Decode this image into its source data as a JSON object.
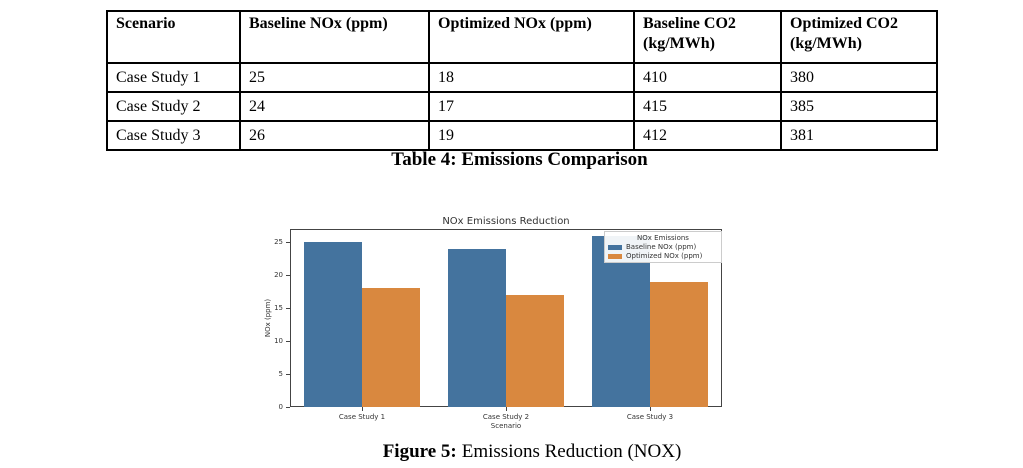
{
  "table": {
    "caption": "Table 4: Emissions Comparison",
    "columns": [
      "Scenario",
      "Baseline NOx (ppm)",
      "Optimized NOx (ppm)",
      "Baseline CO2 (kg/MWh)",
      "Optimized CO2 (kg/MWh)"
    ],
    "rows": [
      [
        "Case Study 1",
        "25",
        "18",
        "410",
        "380"
      ],
      [
        "Case Study 2",
        "24",
        "17",
        "415",
        "385"
      ],
      [
        "Case Study 3",
        "26",
        "19",
        "412",
        "381"
      ]
    ]
  },
  "figure": {
    "caption_label": "Figure 5:",
    "caption_text": "Emissions Reduction (NOX)"
  },
  "chart_data": {
    "type": "bar",
    "title": "NOx Emissions Reduction",
    "xlabel": "Scenario",
    "ylabel": "NOx (ppm)",
    "categories": [
      "Case Study 1",
      "Case Study 2",
      "Case Study 3"
    ],
    "series": [
      {
        "name": "Baseline NOx (ppm)",
        "color": "#44739e",
        "values": [
          25,
          24,
          26
        ]
      },
      {
        "name": "Optimized NOx (ppm)",
        "color": "#d9883f",
        "values": [
          18,
          17,
          19
        ]
      }
    ],
    "legend_title": "NOx Emissions",
    "legend_position": "upper right",
    "ylim": [
      0,
      27
    ],
    "yticks": [
      0,
      5,
      10,
      15,
      20,
      25
    ],
    "grid": false,
    "background": "#ffffff",
    "spine_color": "#444444"
  }
}
